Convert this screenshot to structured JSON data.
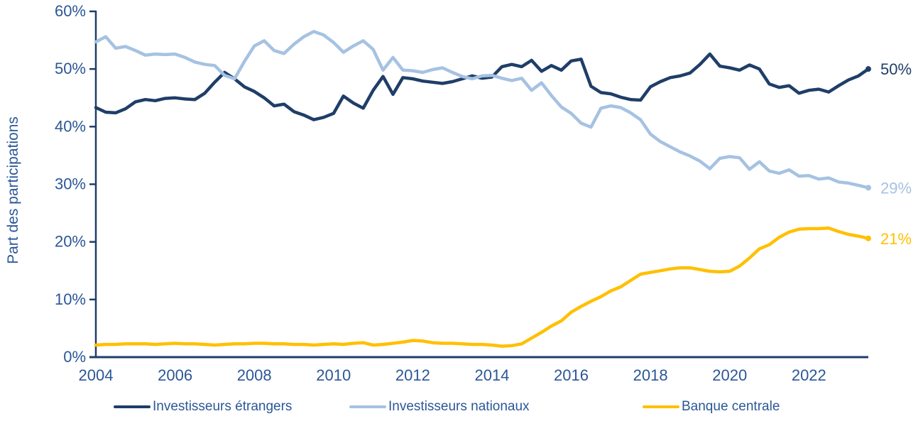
{
  "colors": {
    "background": "#ffffff",
    "axis_text": "#2b5797",
    "axis_line": "#1f3e68",
    "series_dark_blue": "#1f3e68",
    "series_light_blue": "#a6c2e2",
    "series_yellow": "#ffc000"
  },
  "chart_data": {
    "type": "line",
    "title": "",
    "xlabel": "",
    "ylabel": "Part des participations",
    "ylim": [
      0,
      60
    ],
    "xlim_years": [
      2004,
      2023.5
    ],
    "x_start": 2004,
    "x_step": 0.25,
    "grid": false,
    "legend_position": "bottom",
    "y_ticks": [
      {
        "value": 0,
        "label": "0%"
      },
      {
        "value": 10,
        "label": "10%"
      },
      {
        "value": 20,
        "label": "20%"
      },
      {
        "value": 30,
        "label": "30%"
      },
      {
        "value": 40,
        "label": "40%"
      },
      {
        "value": 50,
        "label": "50%"
      },
      {
        "value": 60,
        "label": "60%"
      }
    ],
    "x_ticks": [
      {
        "year": 2004,
        "label": "2004"
      },
      {
        "year": 2006,
        "label": "2006"
      },
      {
        "year": 2008,
        "label": "2008"
      },
      {
        "year": 2010,
        "label": "2010"
      },
      {
        "year": 2012,
        "label": "2012"
      },
      {
        "year": 2014,
        "label": "2014"
      },
      {
        "year": 2016,
        "label": "2016"
      },
      {
        "year": 2018,
        "label": "2018"
      },
      {
        "year": 2020,
        "label": "2020"
      },
      {
        "year": 2022,
        "label": "2022"
      }
    ],
    "series": [
      {
        "name": "Investisseurs étrangers",
        "color": "#1f3e68",
        "end_label": "50%",
        "values": [
          43.3,
          42.5,
          42.4,
          43.1,
          44.3,
          44.7,
          44.5,
          44.9,
          45.0,
          44.8,
          44.7,
          45.8,
          47.7,
          49.4,
          48.3,
          46.9,
          46.1,
          45.0,
          43.6,
          43.9,
          42.6,
          42.0,
          41.2,
          41.6,
          42.3,
          45.3,
          44.1,
          43.2,
          46.3,
          48.7,
          45.6,
          48.5,
          48.3,
          47.9,
          47.7,
          47.5,
          47.8,
          48.3,
          48.8,
          48.4,
          48.6,
          50.4,
          50.8,
          50.4,
          51.5,
          49.6,
          50.6,
          49.8,
          51.4,
          51.7,
          47.0,
          45.9,
          45.7,
          45.1,
          44.7,
          44.6,
          46.9,
          47.8,
          48.5,
          48.8,
          49.3,
          50.8,
          52.6,
          50.5,
          50.2,
          49.8,
          50.7,
          50.0,
          47.4,
          46.8,
          47.1,
          45.8,
          46.3,
          46.5,
          46.0,
          47.1,
          48.1,
          48.8,
          50.0
        ]
      },
      {
        "name": "Investisseurs nationaux",
        "color": "#a6c2e2",
        "end_label": "29%",
        "values": [
          54.7,
          55.6,
          53.6,
          53.9,
          53.2,
          52.4,
          52.6,
          52.5,
          52.6,
          52.0,
          51.2,
          50.8,
          50.6,
          48.9,
          48.3,
          51.3,
          54.0,
          54.9,
          53.2,
          52.7,
          54.3,
          55.6,
          56.5,
          55.9,
          54.6,
          52.9,
          54.0,
          54.9,
          53.4,
          49.8,
          52.0,
          49.8,
          49.7,
          49.4,
          49.9,
          50.2,
          49.4,
          48.7,
          48.3,
          48.8,
          48.9,
          48.4,
          48.0,
          48.4,
          46.3,
          47.6,
          45.4,
          43.4,
          42.3,
          40.6,
          39.9,
          43.2,
          43.6,
          43.3,
          42.4,
          41.2,
          38.7,
          37.4,
          36.5,
          35.6,
          34.9,
          34.0,
          32.7,
          34.5,
          34.8,
          34.6,
          32.6,
          33.9,
          32.3,
          31.9,
          32.5,
          31.4,
          31.5,
          30.9,
          31.1,
          30.4,
          30.2,
          29.8,
          29.4
        ]
      },
      {
        "name": "Banque centrale",
        "color": "#ffc000",
        "end_label": "21%",
        "values": [
          2.1,
          2.2,
          2.2,
          2.3,
          2.3,
          2.3,
          2.2,
          2.3,
          2.4,
          2.3,
          2.3,
          2.2,
          2.1,
          2.2,
          2.3,
          2.3,
          2.4,
          2.4,
          2.3,
          2.3,
          2.2,
          2.2,
          2.1,
          2.2,
          2.3,
          2.2,
          2.4,
          2.5,
          2.1,
          2.2,
          2.4,
          2.6,
          2.9,
          2.8,
          2.5,
          2.4,
          2.4,
          2.3,
          2.2,
          2.2,
          2.1,
          1.9,
          2.0,
          2.3,
          3.3,
          4.3,
          5.4,
          6.3,
          7.8,
          8.8,
          9.7,
          10.5,
          11.5,
          12.2,
          13.3,
          14.4,
          14.7,
          15.0,
          15.3,
          15.5,
          15.5,
          15.2,
          14.9,
          14.8,
          14.9,
          15.8,
          17.2,
          18.8,
          19.5,
          20.8,
          21.7,
          22.2,
          22.3,
          22.3,
          22.4,
          21.8,
          21.3,
          21.0,
          20.6
        ]
      }
    ],
    "legend_x_positions": [
      160,
      492,
      905
    ]
  }
}
